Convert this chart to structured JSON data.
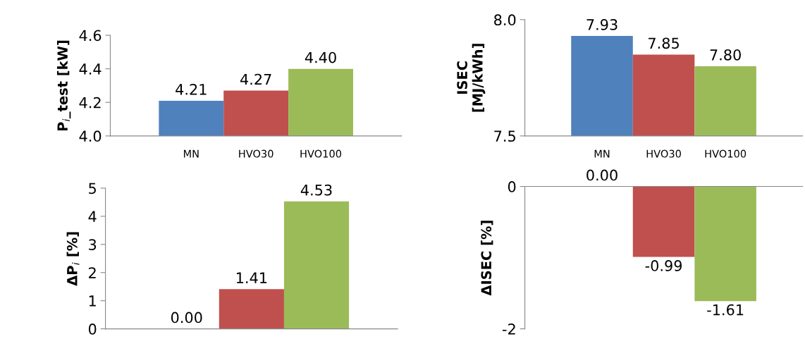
{
  "chart_data": [
    {
      "type": "bar",
      "categories": [
        "MN",
        "HVO30",
        "HVO100"
      ],
      "values": [
        4.21,
        4.27,
        4.4
      ],
      "colors": [
        "#4f81bd",
        "#c0504d",
        "#9bbb59"
      ],
      "value_labels": [
        "4.21",
        "4.27",
        "4.40"
      ],
      "ylabel": "P$_{i}$_test [kW]",
      "ylim": [
        4.0,
        4.6
      ],
      "yticks": [
        {
          "value": 4.0,
          "label": "4.0"
        },
        {
          "value": 4.2,
          "label": "4.2"
        },
        {
          "value": 4.4,
          "label": "4.4"
        },
        {
          "value": 4.6,
          "label": "4.6"
        }
      ],
      "grid": false
    },
    {
      "type": "bar",
      "categories": [
        "MN",
        "HVO30",
        "HVO100"
      ],
      "values": [
        7.93,
        7.85,
        7.8
      ],
      "colors": [
        "#4f81bd",
        "#c0504d",
        "#9bbb59"
      ],
      "value_labels": [
        "7.93",
        "7.85",
        "7.80"
      ],
      "ylabel": "ISEC\n[MJ/kWh]",
      "ylim": [
        7.5,
        8.0
      ],
      "yticks": [
        {
          "value": 7.5,
          "label": "7.5"
        },
        {
          "value": 8.0,
          "label": "8.0"
        }
      ],
      "grid": false
    },
    {
      "type": "bar",
      "categories": [
        null,
        null,
        null
      ],
      "values": [
        0.0,
        1.41,
        4.53
      ],
      "colors": [
        "#4f81bd",
        "#c0504d",
        "#9bbb59"
      ],
      "value_labels": [
        "0.00",
        "1.41",
        "4.53"
      ],
      "ylabel": "ΔP$_{i}$ [%]",
      "ylim": [
        0,
        5
      ],
      "yticks": [
        0,
        1,
        2,
        3,
        4,
        5
      ],
      "grid": false
    },
    {
      "type": "bar",
      "categories": [
        null,
        null,
        null
      ],
      "values": [
        0.0,
        -0.99,
        -1.61
      ],
      "colors": [
        "#4f81bd",
        "#c0504d",
        "#9bbb59"
      ],
      "value_labels": [
        "0.00",
        "-0.99",
        "-1.61"
      ],
      "ylabel": "ΔISEC [%]",
      "ylim": [
        -2,
        0
      ],
      "yticks": [
        -2,
        0
      ],
      "grid": false
    }
  ]
}
